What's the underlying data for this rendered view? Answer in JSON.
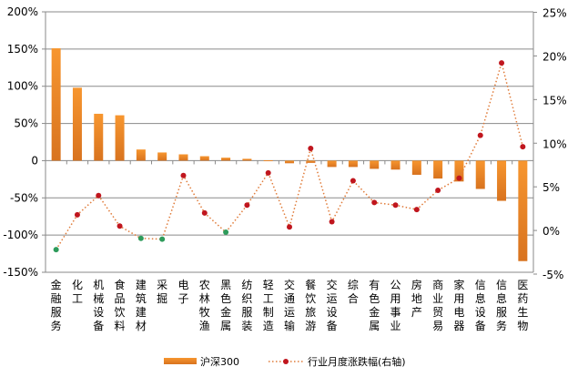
{
  "chart_data": {
    "type": "bar+line",
    "categories": [
      "金融服务",
      "化工",
      "机械设备",
      "食品饮料",
      "建筑建材",
      "采掘",
      "电子",
      "农林牧渔",
      "黑色金属",
      "纺织服装",
      "轻工制造",
      "交通运输",
      "餐饮旅游",
      "交运设备",
      "综合",
      "有色金属",
      "公用事业",
      "房地产",
      "商业贸易",
      "家用电器",
      "信息设备",
      "信息服务",
      "医药生物"
    ],
    "series": [
      {
        "name": "沪深300",
        "axis": "left",
        "type": "bar",
        "color": "#F28C28",
        "values": [
          151,
          98,
          63,
          61,
          15,
          11,
          8.5,
          6,
          4,
          2.5,
          0.5,
          -3.5,
          -3,
          -8.5,
          -8.5,
          -11,
          -12,
          -19,
          -24,
          -28,
          -38,
          -54,
          -135
        ]
      },
      {
        "name": "行业月度涨跌幅(右轴)",
        "axis": "right",
        "type": "line",
        "color": "#E07B39",
        "marker_color": "#C0161E",
        "negative_marker_color": "#2E9B5B",
        "values": [
          -2.2,
          1.8,
          4.0,
          0.5,
          -0.9,
          -1.0,
          6.3,
          2.0,
          -0.2,
          2.9,
          6.6,
          0.4,
          9.4,
          1.0,
          5.7,
          3.2,
          2.9,
          2.4,
          4.6,
          6.0,
          10.9,
          19.2,
          9.6
        ]
      }
    ],
    "left_axis": {
      "min": -150,
      "max": 200,
      "step": 50,
      "ticks": [
        "200%",
        "150%",
        "100%",
        "50%",
        "0",
        "-50%",
        "-100%",
        "-150%"
      ]
    },
    "right_axis": {
      "min": -5,
      "max": 25,
      "step": 5,
      "ticks": [
        "25%",
        "20%",
        "15%",
        "10%",
        "5%",
        "0%",
        "-5%"
      ]
    },
    "grid": true,
    "legend_position": "bottom"
  }
}
